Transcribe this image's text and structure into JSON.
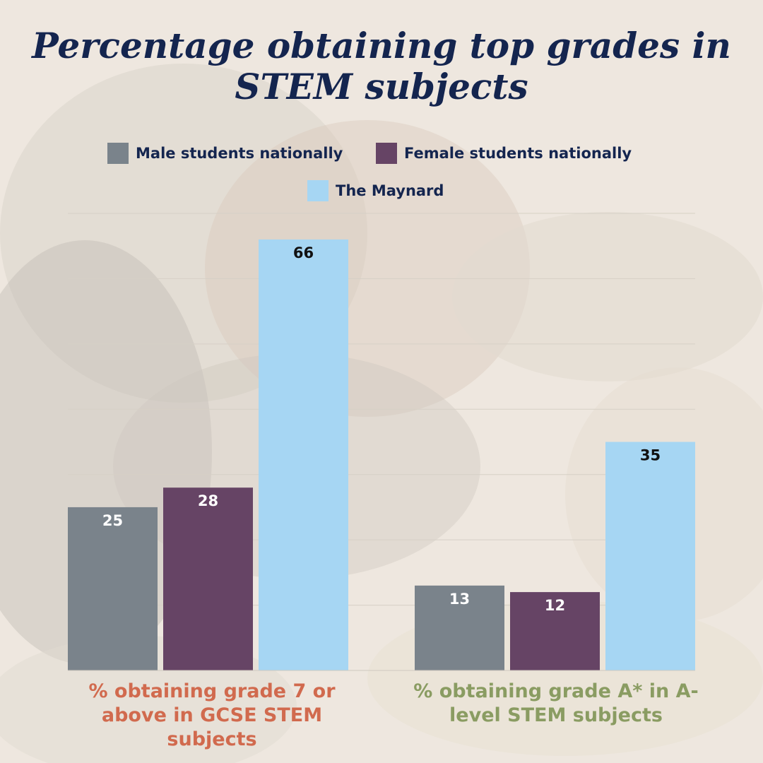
{
  "title": "Percentage obtaining top grades in STEM subjects",
  "legend": {
    "male": "Male students nationally",
    "female": "Female students nationally",
    "maynard": "The Maynard"
  },
  "group_labels": {
    "gcse": "% obtaining grade 7 or above in GCSE STEM subjects",
    "alevel": "% obtaining grade A* in A-level STEM subjects"
  },
  "colors": {
    "title": "#14254f",
    "male": "#7a838b",
    "female": "#664465",
    "maynard": "#a6d6f3",
    "gcse_label": "#d16a4e",
    "alevel_label": "#8a9c62"
  },
  "chart_data": {
    "type": "bar",
    "title": "Percentage obtaining top grades in STEM subjects",
    "categories": [
      "% obtaining grade 7 or above in GCSE STEM subjects",
      "% obtaining grade A* in A-level STEM subjects"
    ],
    "series": [
      {
        "name": "Male students nationally",
        "values": [
          25,
          13
        ]
      },
      {
        "name": "Female students nationally",
        "values": [
          28,
          12
        ]
      },
      {
        "name": "The Maynard",
        "values": [
          66,
          35
        ]
      }
    ],
    "ylim": [
      0,
      70
    ],
    "grid": true,
    "legend": "top",
    "data_labels": true
  }
}
